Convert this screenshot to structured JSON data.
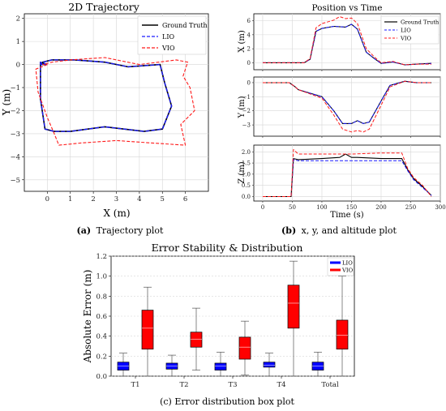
{
  "colors": {
    "ground_truth": "#000000",
    "lio": "#1a1aff",
    "vio": "#ff1a1a",
    "lio_box": "#0000ff",
    "vio_box": "#ff0000"
  },
  "chart_data": [
    {
      "id": "traj",
      "type": "line",
      "title": "2D Trajectory",
      "xlabel": "X (m)",
      "ylabel": "Y (m)",
      "xlim": [
        -1,
        7
      ],
      "ylim": [
        -5.5,
        2.2
      ],
      "xticks": [
        "0",
        "1",
        "2",
        "3",
        "4",
        "5",
        "6"
      ],
      "yticks": [
        "2",
        "1",
        "0",
        "−1",
        "−2",
        "−3",
        "−4",
        "−5"
      ],
      "legend": [
        "Ground Truth",
        "LIO",
        "VIO"
      ],
      "legend_position": "top-right",
      "grid": true,
      "series": [
        {
          "name": "Ground Truth",
          "x": [
            0,
            -0.3,
            -0.3,
            -0.1,
            0.3,
            1.0,
            2.5,
            4.2,
            5.0,
            5.4,
            5.1,
            4.9,
            3.5,
            2.5,
            1.2,
            0.2,
            -0.2,
            -0.3,
            0
          ],
          "y": [
            0,
            0.1,
            -1.5,
            -2.8,
            -2.9,
            -2.9,
            -2.7,
            -2.9,
            -2.8,
            -1.8,
            -0.8,
            0,
            -0.1,
            0.1,
            0.2,
            0.2,
            0.1,
            0,
            0
          ]
        },
        {
          "name": "LIO",
          "x": [
            0,
            -0.3,
            -0.3,
            -0.1,
            0.3,
            1.0,
            2.5,
            4.2,
            5.0,
            5.4,
            5.1,
            4.9,
            3.5,
            2.5,
            1.2,
            0.2,
            -0.2,
            -0.3,
            0
          ],
          "y": [
            0,
            0.1,
            -1.5,
            -2.8,
            -2.9,
            -2.9,
            -2.7,
            -2.9,
            -2.8,
            -1.8,
            -0.8,
            0,
            -0.1,
            0.1,
            0.2,
            0.2,
            0.1,
            0,
            0
          ]
        },
        {
          "name": "VIO",
          "x": [
            0,
            -0.5,
            -0.4,
            0.0,
            0.3,
            0.5,
            1.5,
            3.0,
            4.5,
            6.0,
            5.8,
            6.4,
            6.2,
            5.9,
            6.1,
            5.6,
            4.0,
            2.5,
            1.0,
            0.2,
            -0.2,
            0
          ],
          "y": [
            0,
            -0.2,
            -1.2,
            -2.3,
            -3.0,
            -3.5,
            -3.4,
            -3.3,
            -3.4,
            -3.5,
            -2.6,
            -2.0,
            -1.0,
            -0.5,
            0.1,
            0.2,
            0.0,
            0.3,
            0.2,
            0.1,
            0.0,
            0
          ]
        }
      ]
    },
    {
      "id": "pos_x",
      "type": "line",
      "title": "Position vs Time",
      "ylabel": "X (m)",
      "xlim": [
        -15,
        300
      ],
      "ylim": [
        -1,
        7
      ],
      "yticks": [
        "0",
        "2",
        "4",
        "6"
      ],
      "legend": [
        "Ground Truth",
        "LIO",
        "VIO"
      ],
      "legend_position": "top-right",
      "grid": true,
      "series": [
        {
          "name": "Ground Truth",
          "x": [
            0,
            50,
            70,
            80,
            90,
            100,
            120,
            140,
            150,
            160,
            175,
            190,
            200,
            220,
            240,
            260,
            285
          ],
          "y": [
            0,
            0,
            0,
            0.5,
            4.5,
            4.9,
            5.2,
            5.1,
            5.5,
            4.8,
            1.5,
            0.5,
            -0.1,
            0.1,
            -0.3,
            -0.2,
            -0.1
          ]
        },
        {
          "name": "LIO",
          "x": [
            0,
            50,
            70,
            80,
            90,
            100,
            120,
            140,
            150,
            160,
            175,
            190,
            200,
            220,
            240,
            260,
            285
          ],
          "y": [
            0,
            0,
            0,
            0.5,
            4.5,
            4.9,
            5.2,
            5.1,
            5.5,
            4.8,
            1.5,
            0.5,
            -0.1,
            0.1,
            -0.3,
            -0.2,
            -0.1
          ]
        },
        {
          "name": "VIO",
          "x": [
            0,
            50,
            70,
            80,
            90,
            100,
            120,
            130,
            140,
            150,
            160,
            175,
            190,
            200,
            220,
            240,
            260,
            285
          ],
          "y": [
            0,
            0,
            0,
            0.6,
            5.0,
            5.6,
            6.1,
            6.6,
            6.3,
            6.4,
            5.6,
            2.0,
            0.7,
            0.0,
            0.2,
            -0.3,
            -0.2,
            -0.2
          ]
        }
      ]
    },
    {
      "id": "pos_y",
      "type": "line",
      "ylabel": "Y (m)",
      "xlim": [
        -15,
        300
      ],
      "ylim": [
        -3.8,
        0.4
      ],
      "yticks": [
        "0",
        "−1",
        "−2",
        "−3"
      ],
      "grid": true,
      "series": [
        {
          "name": "Ground Truth",
          "x": [
            0,
            45,
            55,
            60,
            100,
            120,
            135,
            150,
            160,
            170,
            180,
            200,
            215,
            240,
            260,
            285
          ],
          "y": [
            0,
            0,
            -0.3,
            -0.5,
            -1.0,
            -2.0,
            -2.9,
            -2.9,
            -2.7,
            -2.9,
            -2.8,
            -1.3,
            -0.2,
            0.1,
            0.0,
            0.0
          ]
        },
        {
          "name": "LIO",
          "x": [
            0,
            45,
            55,
            60,
            100,
            120,
            135,
            150,
            160,
            170,
            180,
            200,
            215,
            240,
            260,
            285
          ],
          "y": [
            0,
            0,
            -0.3,
            -0.5,
            -1.0,
            -2.0,
            -2.9,
            -2.9,
            -2.7,
            -2.9,
            -2.8,
            -1.3,
            -0.2,
            0.1,
            0.0,
            0.0
          ]
        },
        {
          "name": "VIO",
          "x": [
            0,
            45,
            55,
            60,
            100,
            120,
            135,
            150,
            160,
            170,
            180,
            200,
            215,
            240,
            260,
            285
          ],
          "y": [
            0,
            0,
            -0.3,
            -0.5,
            -1.1,
            -2.3,
            -3.3,
            -3.5,
            -3.4,
            -3.5,
            -3.3,
            -1.6,
            -0.3,
            0.1,
            0.0,
            0.0
          ]
        }
      ]
    },
    {
      "id": "pos_z",
      "type": "line",
      "ylabel": "Z (m)",
      "xlabel": "Time (s)",
      "xlim": [
        -15,
        300
      ],
      "ylim": [
        -0.2,
        2.3
      ],
      "xticks": [
        "0",
        "50",
        "100",
        "150",
        "200",
        "250",
        "300"
      ],
      "yticks": [
        "0.0",
        "0.5",
        "1.0",
        "1.5",
        "2.0"
      ],
      "grid": true,
      "series": [
        {
          "name": "Ground Truth",
          "x": [
            0,
            48,
            52,
            60,
            100,
            130,
            140,
            150,
            160,
            200,
            235,
            245,
            255,
            270,
            285
          ],
          "y": [
            0,
            0,
            1.7,
            1.65,
            1.7,
            1.75,
            1.9,
            1.75,
            1.75,
            1.7,
            1.7,
            1.2,
            0.8,
            0.45,
            0.05
          ]
        },
        {
          "name": "LIO",
          "x": [
            0,
            48,
            52,
            60,
            100,
            150,
            200,
            235,
            245,
            255,
            270,
            285
          ],
          "y": [
            0,
            0,
            1.65,
            1.6,
            1.6,
            1.6,
            1.6,
            1.6,
            1.15,
            0.75,
            0.4,
            0.05
          ]
        },
        {
          "name": "VIO",
          "x": [
            0,
            48,
            52,
            60,
            100,
            150,
            200,
            235,
            245,
            255,
            270,
            285
          ],
          "y": [
            0,
            0,
            2.1,
            1.9,
            1.9,
            1.9,
            1.95,
            1.95,
            1.25,
            0.85,
            0.5,
            0.0
          ]
        }
      ]
    },
    {
      "id": "box",
      "type": "bar",
      "title": "Error Stability & Distribution",
      "ylabel": "Absolute Error (m)",
      "categories": [
        "T1",
        "T2",
        "T3",
        "T4",
        "Total"
      ],
      "ylim": [
        0,
        1.2
      ],
      "yticks": [
        "0.0",
        "0.2",
        "0.4",
        "0.6",
        "0.8",
        "1.0",
        "1.2"
      ],
      "legend": [
        "LIO",
        "VIO"
      ],
      "legend_position": "top-right",
      "grid": true,
      "series": [
        {
          "name": "LIO",
          "boxes": [
            {
              "min": 0.0,
              "q1": 0.06,
              "median": 0.1,
              "q3": 0.14,
              "max": 0.23
            },
            {
              "min": 0.0,
              "q1": 0.07,
              "median": 0.1,
              "q3": 0.13,
              "max": 0.21
            },
            {
              "min": 0.0,
              "q1": 0.06,
              "median": 0.1,
              "q3": 0.13,
              "max": 0.24
            },
            {
              "min": 0.0,
              "q1": 0.09,
              "median": 0.11,
              "q3": 0.14,
              "max": 0.23
            },
            {
              "min": 0.0,
              "q1": 0.06,
              "median": 0.1,
              "q3": 0.14,
              "max": 0.24
            }
          ]
        },
        {
          "name": "VIO",
          "boxes": [
            {
              "min": 0.0,
              "q1": 0.27,
              "median": 0.48,
              "q3": 0.66,
              "max": 0.89
            },
            {
              "min": 0.06,
              "q1": 0.29,
              "median": 0.37,
              "q3": 0.44,
              "max": 0.68
            },
            {
              "min": 0.01,
              "q1": 0.17,
              "median": 0.29,
              "q3": 0.39,
              "max": 0.55
            },
            {
              "min": 0.0,
              "q1": 0.48,
              "median": 0.73,
              "q3": 0.91,
              "max": 1.15
            },
            {
              "min": 0.0,
              "q1": 0.27,
              "median": 0.41,
              "q3": 0.56,
              "max": 1.0
            }
          ]
        }
      ]
    }
  ],
  "captions": {
    "a_label": "(a)",
    "a_text": "Trajectory plot",
    "b_label": "(b)",
    "b_text": "x, y, and altitude plot",
    "c_text": "(c) Error distribution box plot"
  }
}
